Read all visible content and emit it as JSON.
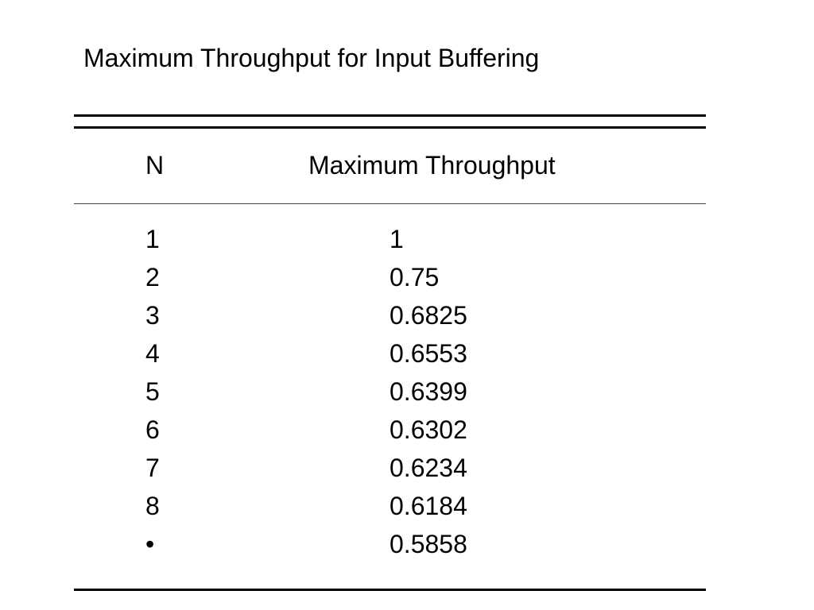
{
  "title": "Maximum Throughput for Input Buffering",
  "table": {
    "header": [
      "N",
      "Maximum Throughput"
    ],
    "rows": [
      [
        "1",
        "1"
      ],
      [
        "2",
        "0.75"
      ],
      [
        "3",
        "0.6825"
      ],
      [
        "4",
        "0.6553"
      ],
      [
        "5",
        "0.6399"
      ],
      [
        "6",
        "0.6302"
      ],
      [
        "7",
        "0.6234"
      ],
      [
        "8",
        "0.6184"
      ],
      [
        "•",
        "0.5858"
      ]
    ]
  }
}
